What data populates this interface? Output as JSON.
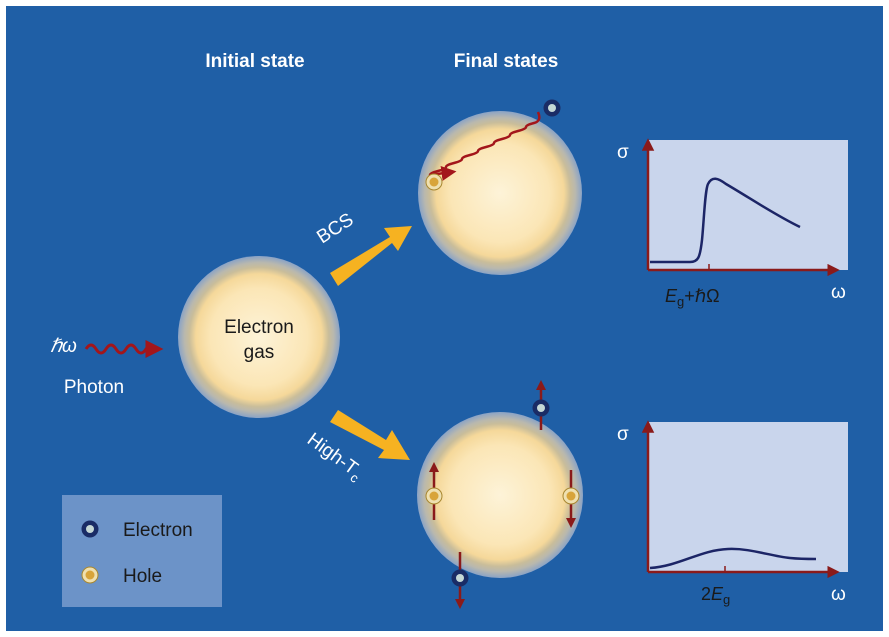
{
  "headers": {
    "initial": "Initial state",
    "final": "Final states"
  },
  "photon": {
    "symbol": "ℏω",
    "label": "Photon"
  },
  "electron_gas": {
    "line1": "Electron",
    "line2": "gas"
  },
  "paths": {
    "bcs": "BCS",
    "hightc_main": "High-T",
    "hightc_sub": "c"
  },
  "legend": {
    "electron": "Electron",
    "hole": "Hole"
  },
  "plots": {
    "y_symbol": "σ",
    "x_symbol": "ω",
    "top_tick_E": "E",
    "top_tick_g": "g",
    "top_tick_rest": "+ℏΩ",
    "bottom_tick_2": "2",
    "bottom_tick_E": "E",
    "bottom_tick_g": "g"
  },
  "colors": {
    "background": "#1f5fa6",
    "arrow_orange": "#f6b221",
    "photon_red": "#a3161b",
    "plot_bg": "#c9d5ec",
    "curve": "#1c2566",
    "electron": "#1a2c66",
    "hole": "#d8a43a"
  }
}
